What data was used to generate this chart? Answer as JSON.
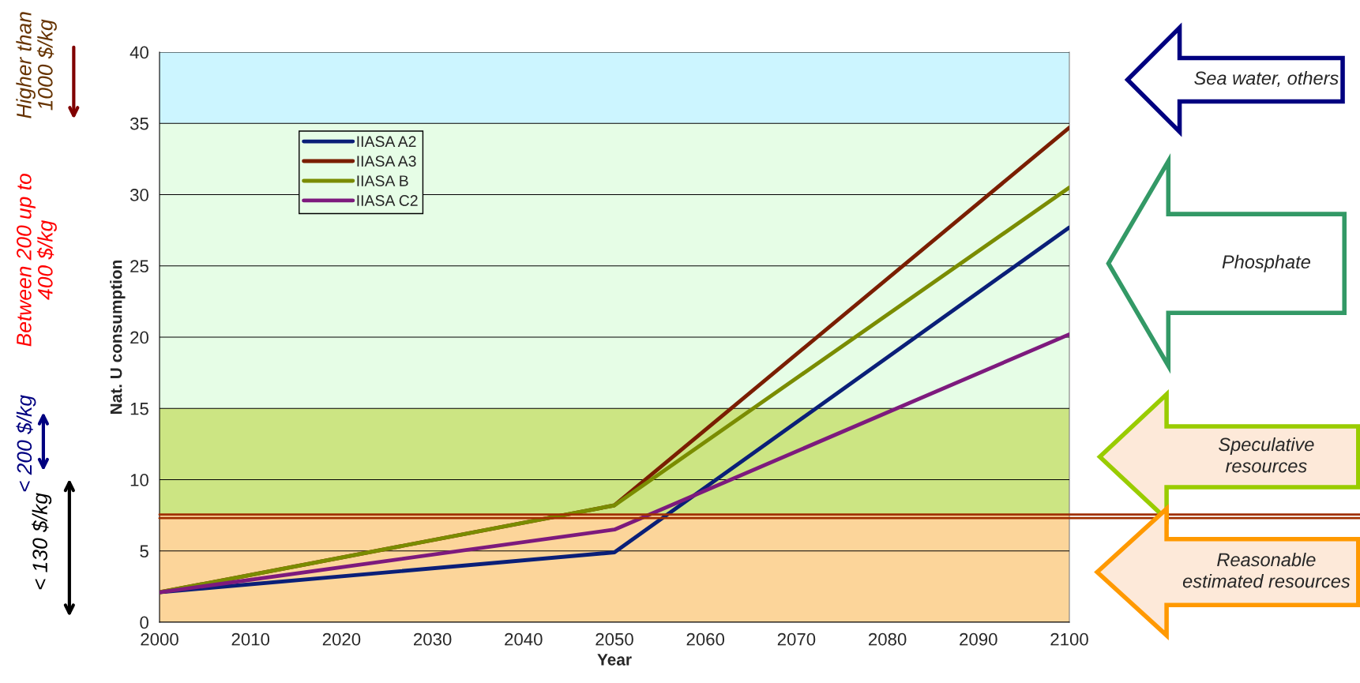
{
  "chart_data": {
    "type": "line",
    "xlabel": "Year",
    "ylabel": "Nat. U consumption",
    "x": [
      2000,
      2050,
      2100
    ],
    "series": [
      {
        "name": "IIASA A2",
        "color": "#0a1f78",
        "values": [
          2.1,
          4.9,
          27.7
        ]
      },
      {
        "name": "IIASA A3",
        "color": "#7a1e00",
        "values": [
          2.1,
          8.2,
          34.7
        ]
      },
      {
        "name": "IIASA B",
        "color": "#7a8c00",
        "values": [
          2.1,
          8.2,
          30.5
        ]
      },
      {
        "name": "IIASA C2",
        "color": "#7d1a7d",
        "values": [
          2.1,
          6.5,
          20.2
        ]
      }
    ],
    "xlim": [
      2000,
      2100
    ],
    "xticks": [
      2000,
      2010,
      2020,
      2030,
      2040,
      2050,
      2060,
      2070,
      2080,
      2090,
      2100
    ],
    "ylim": [
      0,
      40
    ],
    "yticks": [
      0,
      5,
      10,
      15,
      20,
      25,
      30,
      35,
      40
    ],
    "grid": "y",
    "legend": "top left",
    "marker": "none",
    "line_style": "solid",
    "bands": [
      {
        "axis": "y",
        "from": 35,
        "to": 40,
        "color": "#ccf5ff"
      },
      {
        "axis": "y",
        "from": 15,
        "to": 35,
        "color": "#e6fde6"
      },
      {
        "axis": "y",
        "from": 7.5,
        "to": 15,
        "color": "#cce583"
      },
      {
        "axis": "y",
        "from": 0,
        "to": 7.5,
        "color": "#fcd59a"
      }
    ],
    "ref_lines": [
      {
        "axis": "y",
        "value": 7.3,
        "color": "#a03000"
      },
      {
        "axis": "y",
        "value": 7.55,
        "color": "#a03000"
      }
    ],
    "annotations": [
      "Higher than\n1000 $/kg",
      "Between 200 up to\n400 $/kg",
      "< 200 $/kg",
      "< 130 $/kg",
      "Sea water, others",
      "Phosphate",
      "Speculative\nresources",
      "Reasonable\nestimated resources"
    ]
  }
}
